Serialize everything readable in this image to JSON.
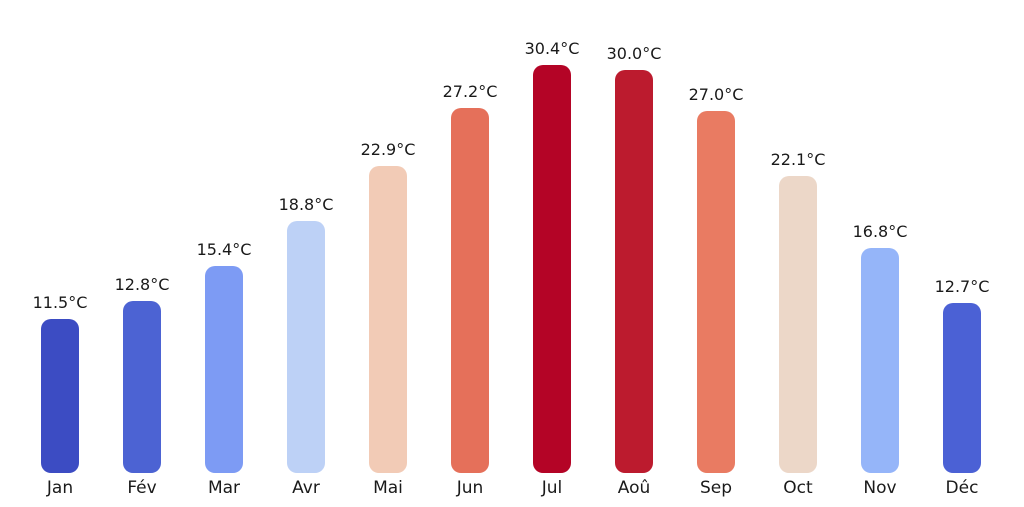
{
  "chart_data": {
    "type": "bar",
    "title": "",
    "xlabel": "",
    "ylabel": "",
    "categories": [
      "Jan",
      "Fév",
      "Mar",
      "Avr",
      "Mai",
      "Jun",
      "Jul",
      "Aoû",
      "Sep",
      "Oct",
      "Nov",
      "Déc"
    ],
    "values": [
      11.5,
      12.8,
      15.4,
      18.8,
      22.9,
      27.2,
      30.4,
      30.0,
      27.0,
      22.1,
      16.8,
      12.7
    ],
    "value_labels": [
      "11.5°C",
      "12.8°C",
      "15.4°C",
      "18.8°C",
      "22.9°C",
      "27.2°C",
      "30.4°C",
      "30.0°C",
      "27.0°C",
      "22.1°C",
      "16.8°C",
      "12.7°C"
    ],
    "bar_colors": [
      "#3c4cc3",
      "#4c63d3",
      "#7d9bf4",
      "#bdd1f6",
      "#f2cbb6",
      "#e5705a",
      "#b40426",
      "#bc1b2e",
      "#e97b62",
      "#ecd7c8",
      "#95b5f9",
      "#4b61d5"
    ],
    "grid": false,
    "legend": false,
    "y_axis_visible": false,
    "x_axis_line_visible": false,
    "background_color": "#ffffff",
    "text_color": "#1a1a1a"
  }
}
